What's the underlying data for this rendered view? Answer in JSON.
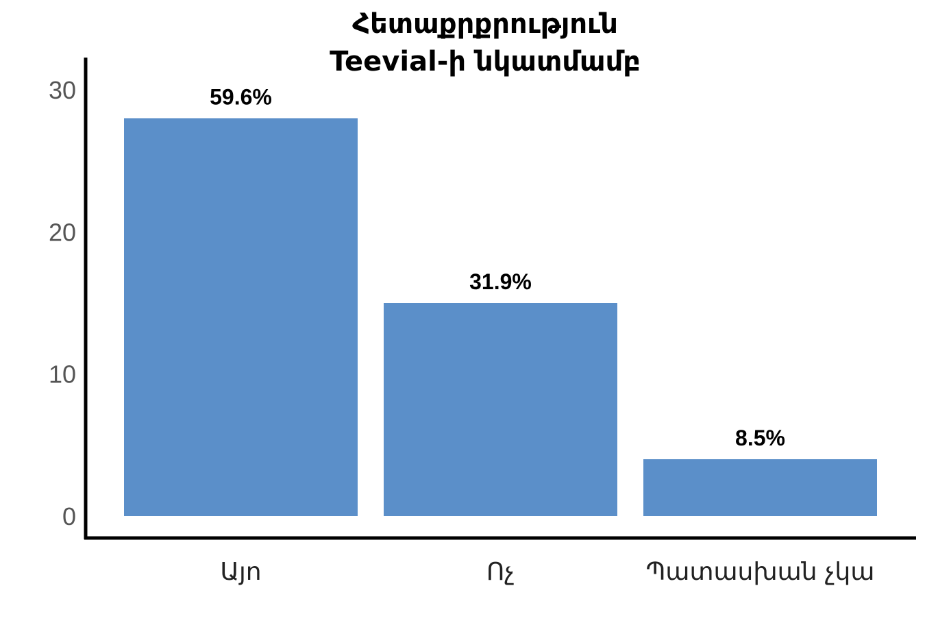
{
  "chart_data": {
    "type": "bar",
    "title_lines": [
      "Հետաքրքրություն",
      "Teevial-ի նկատմամբ"
    ],
    "categories": [
      "Այո",
      "Ոչ",
      "Պատասխան չկա"
    ],
    "values": [
      28,
      15,
      4
    ],
    "data_labels": [
      "59.6%",
      "31.9%",
      "8.5%"
    ],
    "yticks": [
      "0",
      "10",
      "20",
      "30"
    ],
    "ylim": [
      0,
      30
    ],
    "grid": false,
    "legend": "none",
    "bar_color": "#5b8fc9",
    "axis_color": "#000000"
  }
}
